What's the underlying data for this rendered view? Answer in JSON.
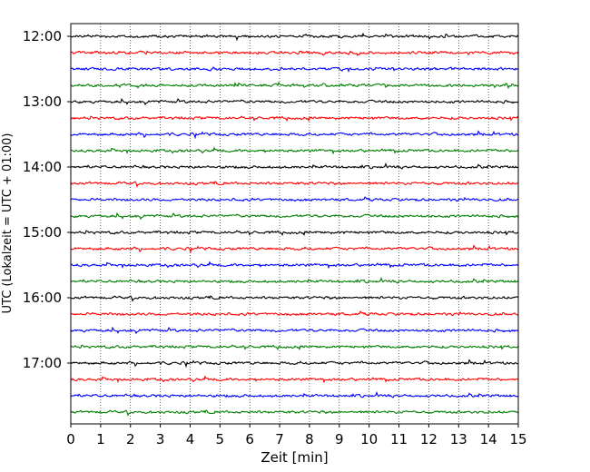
{
  "chart_data": {
    "type": "line",
    "title": "",
    "xlabel": "Zeit  [min]",
    "ylabel": "UTC (Lokalzeit = UTC + 01:00)",
    "xlim": [
      0,
      15
    ],
    "x_ticks": [
      "0",
      "1",
      "2",
      "3",
      "4",
      "5",
      "6",
      "7",
      "8",
      "9",
      "10",
      "11",
      "12",
      "13",
      "14",
      "15"
    ],
    "y_ticks": [
      "12:00",
      "13:00",
      "14:00",
      "15:00",
      "16:00",
      "17:00"
    ],
    "grid": "vertical dotted lines at each minute",
    "trace_interval_minutes": 15,
    "trace_start": "12:00",
    "trace_count": 24,
    "trace_colors": [
      "#000000",
      "#ff0000",
      "#0000ff",
      "#007f00"
    ]
  }
}
